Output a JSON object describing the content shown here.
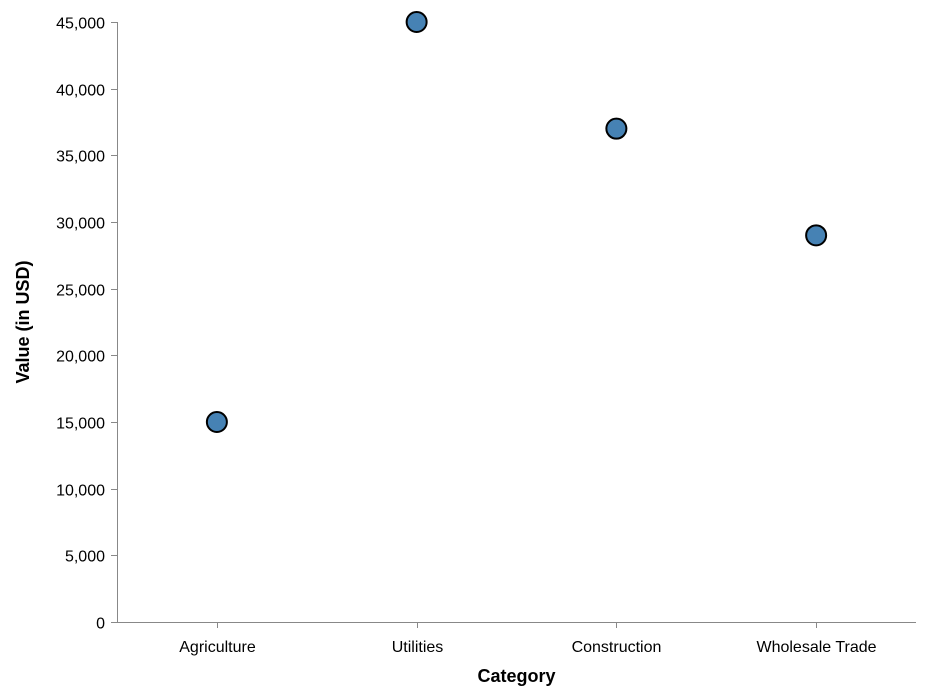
{
  "chart_data": {
    "type": "scatter",
    "categories": [
      "Agriculture",
      "Utilities",
      "Construction",
      "Wholesale Trade"
    ],
    "values": [
      15000,
      45000,
      37000,
      29000
    ],
    "xlabel": "Category",
    "ylabel": "Value (in USD)",
    "ylim": [
      0,
      45000
    ],
    "yticks": [
      0,
      5000,
      10000,
      15000,
      20000,
      25000,
      30000,
      35000,
      40000,
      45000
    ],
    "grid": false,
    "colors": {
      "point_fill": "#4682b4",
      "point_stroke": "#000000"
    }
  }
}
